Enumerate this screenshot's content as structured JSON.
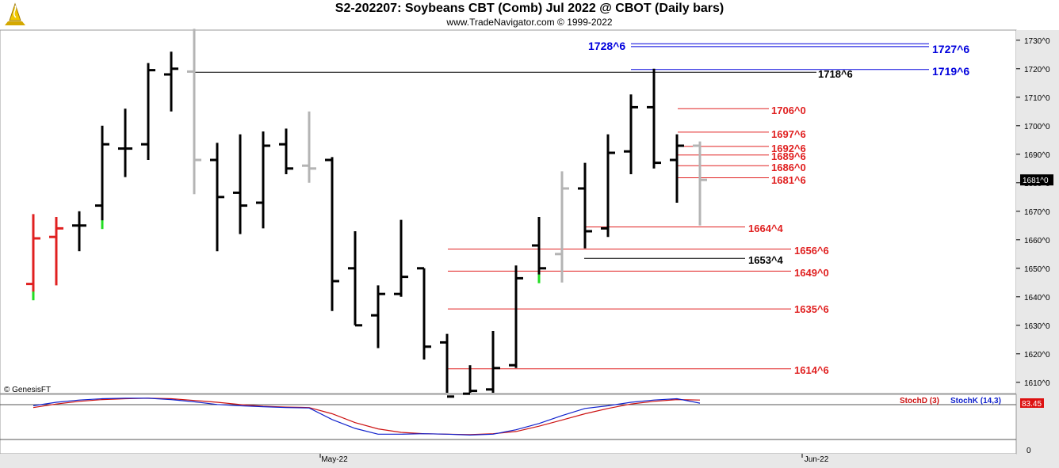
{
  "header": {
    "title": "S2-202207:  Soybeans CBT (Comb) Jul 2022 @ CBOT  (Daily bars)",
    "subtitle": "www.TradeNavigator.com © 1999-2022"
  },
  "copyright": "© GenesisFT",
  "chart_data": {
    "type": "ohlc",
    "ylim": [
      1603,
      1735
    ],
    "yticks": [
      "1610^0",
      "1620^0",
      "1630^0",
      "1640^0",
      "1650^0",
      "1660^0",
      "1670^0",
      "1680^0",
      "1690^0",
      "1700^0",
      "1710^0",
      "1720^0",
      "1730^0"
    ],
    "ytick_values": [
      1610,
      1620,
      1630,
      1640,
      1650,
      1660,
      1670,
      1680,
      1690,
      1700,
      1710,
      1720,
      1730
    ],
    "xtick_labels": [
      "May-22",
      "Jun-22"
    ],
    "last_price_label": "1681^0",
    "last_price": 1681.0,
    "bars": [
      {
        "o": 1644.5,
        "h": 1669,
        "l": 1641,
        "c": 1660.5,
        "color": "#e02020"
      },
      {
        "o": 1661,
        "h": 1668,
        "l": 1644,
        "c": 1664,
        "color": "#e02020"
      },
      {
        "o": 1665,
        "h": 1670,
        "l": 1656,
        "c": 1665,
        "color": "#000000"
      },
      {
        "o": 1672,
        "h": 1700,
        "l": 1666,
        "c": 1693.5,
        "color": "#000000"
      },
      {
        "o": 1692,
        "h": 1706,
        "l": 1682,
        "c": 1692,
        "color": "#000000"
      },
      {
        "o": 1693.5,
        "h": 1722,
        "l": 1688,
        "c": 1719.5,
        "color": "#000000"
      },
      {
        "o": 1718,
        "h": 1726,
        "l": 1705,
        "c": 1720,
        "color": "#000000"
      },
      {
        "o": 1719,
        "h": 1734,
        "l": 1676,
        "c": 1688,
        "color": "#b4b4b4"
      },
      {
        "o": 1688,
        "h": 1694,
        "l": 1656,
        "c": 1675,
        "color": "#000000"
      },
      {
        "o": 1676.5,
        "h": 1697,
        "l": 1662,
        "c": 1672,
        "color": "#000000"
      },
      {
        "o": 1673,
        "h": 1698,
        "l": 1664,
        "c": 1693,
        "color": "#000000"
      },
      {
        "o": 1693.5,
        "h": 1699,
        "l": 1683,
        "c": 1685,
        "color": "#000000"
      },
      {
        "o": 1686,
        "h": 1705,
        "l": 1680,
        "c": 1685,
        "color": "#b4b4b4"
      },
      {
        "o": 1688,
        "h": 1689,
        "l": 1635,
        "c": 1645.5,
        "color": "#000000"
      },
      {
        "o": 1650,
        "h": 1663,
        "l": 1630,
        "c": 1630,
        "color": "#000000"
      },
      {
        "o": 1633.5,
        "h": 1644,
        "l": 1622,
        "c": 1641,
        "color": "#000000"
      },
      {
        "o": 1641,
        "h": 1667,
        "l": 1640,
        "c": 1647,
        "color": "#000000"
      },
      {
        "o": 1650,
        "h": 1650,
        "l": 1618,
        "c": 1622.5,
        "color": "#000000"
      },
      {
        "o": 1624,
        "h": 1627,
        "l": 1603,
        "c": 1605,
        "color": "#000000"
      },
      {
        "o": 1606,
        "h": 1616,
        "l": 1604,
        "c": 1607,
        "color": "#000000"
      },
      {
        "o": 1607.5,
        "h": 1628,
        "l": 1604,
        "c": 1615,
        "color": "#000000"
      },
      {
        "o": 1616,
        "h": 1651,
        "l": 1615,
        "c": 1646.5,
        "color": "#000000"
      },
      {
        "o": 1658,
        "h": 1668,
        "l": 1647,
        "c": 1650,
        "color": "#000000"
      },
      {
        "o": 1655,
        "h": 1684,
        "l": 1645,
        "c": 1678,
        "color": "#b4b4b4"
      },
      {
        "o": 1678,
        "h": 1687,
        "l": 1657,
        "c": 1663,
        "color": "#000000"
      },
      {
        "o": 1664,
        "h": 1697,
        "l": 1661,
        "c": 1690.5,
        "color": "#000000"
      },
      {
        "o": 1691,
        "h": 1711,
        "l": 1683,
        "c": 1706.5,
        "color": "#000000"
      },
      {
        "o": 1706.5,
        "h": 1720,
        "l": 1685,
        "c": 1687,
        "color": "#000000"
      },
      {
        "o": 1688,
        "h": 1697,
        "l": 1673,
        "c": 1693,
        "color": "#000000"
      },
      {
        "o": 1693,
        "h": 1694.5,
        "l": 1665,
        "c": 1681,
        "color": "#b4b4b4"
      }
    ],
    "low_ticks": [
      {
        "bar": 0,
        "price": 1641
      },
      {
        "bar": 3,
        "price": 1666
      },
      {
        "bar": 22,
        "price": 1647
      }
    ],
    "levels": [
      {
        "label": "1728^6",
        "price": 1728.75,
        "color": "#0000dd"
      },
      {
        "label": "1727^6",
        "price": 1727.75,
        "color": "#0000dd"
      },
      {
        "label": "1719^6",
        "price": 1719.75,
        "color": "#0000dd"
      },
      {
        "label": "1718^6",
        "price": 1718.75,
        "color": "#000000"
      },
      {
        "label": "1706^0",
        "price": 1706.0,
        "color": "#e02020"
      },
      {
        "label": "1697^6",
        "price": 1697.75,
        "color": "#e02020"
      },
      {
        "label": "1692^6",
        "price": 1692.75,
        "color": "#e02020"
      },
      {
        "label": "1689^6",
        "price": 1689.75,
        "color": "#e02020"
      },
      {
        "label": "1686^0",
        "price": 1686.0,
        "color": "#e02020"
      },
      {
        "label": "1681^6",
        "price": 1681.75,
        "color": "#e02020"
      },
      {
        "label": "1664^4",
        "price": 1664.5,
        "color": "#e02020"
      },
      {
        "label": "1656^6",
        "price": 1656.75,
        "color": "#e02020"
      },
      {
        "label": "1653^4",
        "price": 1653.5,
        "color": "#000000"
      },
      {
        "label": "1649^0",
        "price": 1649.0,
        "color": "#e02020"
      },
      {
        "label": "1635^6",
        "price": 1635.75,
        "color": "#e02020"
      },
      {
        "label": "1614^6",
        "price": 1614.75,
        "color": "#e02020"
      }
    ],
    "stochastic": {
      "labels": [
        "StochD (3)",
        "StochK (14,3)"
      ],
      "last_values": [
        "83.45"
      ],
      "zero_label": "0",
      "ylim": [
        0,
        100
      ],
      "stoch_d": [
        72,
        80,
        86,
        90,
        92,
        93,
        92,
        88,
        84,
        79,
        75,
        73,
        72,
        58,
        38,
        24,
        16,
        13,
        12,
        11,
        13,
        18,
        30,
        44,
        58,
        70,
        80,
        86,
        90,
        89
      ],
      "stoch_k": [
        76,
        84,
        89,
        92,
        93,
        93,
        90,
        85,
        79,
        76,
        74,
        72,
        71,
        45,
        25,
        12,
        12,
        13,
        12,
        10,
        12,
        22,
        36,
        54,
        70,
        76,
        84,
        89,
        92,
        82
      ]
    }
  }
}
